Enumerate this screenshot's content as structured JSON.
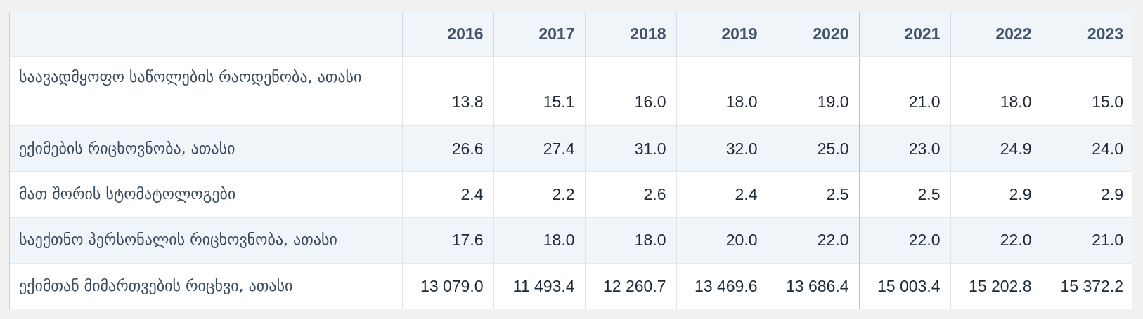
{
  "table": {
    "corner_label": "",
    "years": [
      "2016",
      "2017",
      "2018",
      "2019",
      "2020",
      "2021",
      "2022",
      "2023"
    ],
    "rows": [
      {
        "label": "საავადმყოფო საწოლების რაოდენობა, ათასი",
        "values": [
          "13.8",
          "15.1",
          "16.0",
          "18.0",
          "19.0",
          "21.0",
          "18.0",
          "15.0"
        ]
      },
      {
        "label": "ექიმების რიცხოვნობა, ათასი",
        "values": [
          "26.6",
          "27.4",
          "31.0",
          "32.0",
          "25.0",
          "23.0",
          "24.9",
          "24.0"
        ]
      },
      {
        "label": "მათ შორის სტომატოლოგები",
        "values": [
          "2.4",
          "2.2",
          "2.6",
          "2.4",
          "2.5",
          "2.5",
          "2.9",
          "2.9"
        ]
      },
      {
        "label": "საექთნო პერსონალის რიცხოვნობა, ათასი",
        "values": [
          "17.6",
          "18.0",
          "18.0",
          "20.0",
          "22.0",
          "22.0",
          "22.0",
          "21.0"
        ]
      },
      {
        "label": "ექიმთან მიმართვების რიცხვი, ათასი",
        "values": [
          "13 079.0",
          "11 493.4",
          "12 260.7",
          "13 469.6",
          "13 686.4",
          "15 003.4",
          "15 202.8",
          "15 372.2"
        ]
      }
    ]
  }
}
